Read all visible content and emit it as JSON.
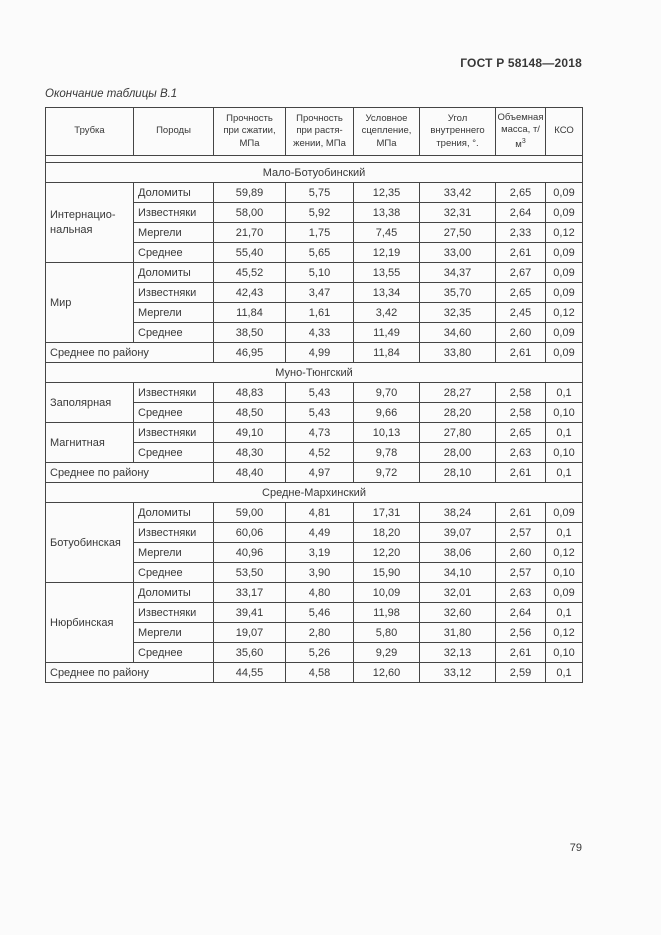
{
  "page": {
    "doc_header": "ГОСТ Р 58148—2018",
    "table_caption": "Окончание таблицы В.1",
    "page_number": "79"
  },
  "table": {
    "headers": {
      "tube": "Трубка",
      "rocks": "Породы",
      "compressive": "Прочность\nпри сжатии,\nМПа",
      "tensile": "Прочность\nпри растя-\nжении, МПа",
      "cohesion": "Условное\nсцепление,\nМПа",
      "friction": "Угол\nвнутреннего\nтрения, °.",
      "mass_base": "Объемная\nмасса, т/м",
      "mass_sup": "3",
      "kso": "КСО"
    },
    "sections": [
      {
        "title": "Мало-Ботуобинский",
        "groups": [
          {
            "tube": "Интернацио-\nнальная",
            "rows": [
              [
                "Доломиты",
                "59,89",
                "5,75",
                "12,35",
                "33,42",
                "2,65",
                "0,09"
              ],
              [
                "Известняки",
                "58,00",
                "5,92",
                "13,38",
                "32,31",
                "2,64",
                "0,09"
              ],
              [
                "Мергели",
                "21,70",
                "1,75",
                "7,45",
                "27,50",
                "2,33",
                "0,12"
              ],
              [
                "Среднее",
                "55,40",
                "5,65",
                "12,19",
                "33,00",
                "2,61",
                "0,09"
              ]
            ]
          },
          {
            "tube": "Мир",
            "rows": [
              [
                "Доломиты",
                "45,52",
                "5,10",
                "13,55",
                "34,37",
                "2,67",
                "0,09"
              ],
              [
                "Известняки",
                "42,43",
                "3,47",
                "13,34",
                "35,70",
                "2,65",
                "0,09"
              ],
              [
                "Мергели",
                "11,84",
                "1,61",
                "3,42",
                "32,35",
                "2,45",
                "0,12"
              ],
              [
                "Среднее",
                "38,50",
                "4,33",
                "11,49",
                "34,60",
                "2,60",
                "0,09"
              ]
            ]
          }
        ],
        "summary": {
          "label": "Среднее по району",
          "values": [
            "46,95",
            "4,99",
            "11,84",
            "33,80",
            "2,61",
            "0,09"
          ]
        }
      },
      {
        "title": "Муно-Тюнгский",
        "groups": [
          {
            "tube": "Заполярная",
            "rows": [
              [
                "Известняки",
                "48,83",
                "5,43",
                "9,70",
                "28,27",
                "2,58",
                "0,1"
              ],
              [
                "Среднее",
                "48,50",
                "5,43",
                "9,66",
                "28,20",
                "2,58",
                "0,10"
              ]
            ]
          },
          {
            "tube": "Магнитная",
            "rows": [
              [
                "Известняки",
                "49,10",
                "4,73",
                "10,13",
                "27,80",
                "2,65",
                "0,1"
              ],
              [
                "Среднее",
                "48,30",
                "4,52",
                "9,78",
                "28,00",
                "2,63",
                "0,10"
              ]
            ]
          }
        ],
        "summary": {
          "label": "Среднее по району",
          "values": [
            "48,40",
            "4,97",
            "9,72",
            "28,10",
            "2,61",
            "0,1"
          ]
        }
      },
      {
        "title": "Средне-Мархинский",
        "groups": [
          {
            "tube": "Ботуобинская",
            "rows": [
              [
                "Доломиты",
                "59,00",
                "4,81",
                "17,31",
                "38,24",
                "2,61",
                "0,09"
              ],
              [
                "Известняки",
                "60,06",
                "4,49",
                "18,20",
                "39,07",
                "2,57",
                "0,1"
              ],
              [
                "Мергели",
                "40,96",
                "3,19",
                "12,20",
                "38,06",
                "2,60",
                "0,12"
              ],
              [
                "Среднее",
                "53,50",
                "3,90",
                "15,90",
                "34,10",
                "2,57",
                "0,10"
              ]
            ]
          },
          {
            "tube": "Нюрбинская",
            "rows": [
              [
                "Доломиты",
                "33,17",
                "4,80",
                "10,09",
                "32,01",
                "2,63",
                "0,09"
              ],
              [
                "Известняки",
                "39,41",
                "5,46",
                "11,98",
                "32,60",
                "2,64",
                "0,1"
              ],
              [
                "Мергели",
                "19,07",
                "2,80",
                "5,80",
                "31,80",
                "2,56",
                "0,12"
              ],
              [
                "Среднее",
                "35,60",
                "5,26",
                "9,29",
                "32,13",
                "2,61",
                "0,10"
              ]
            ]
          }
        ],
        "summary": {
          "label": "Среднее по району",
          "values": [
            "44,55",
            "4,58",
            "12,60",
            "33,12",
            "2,59",
            "0,1"
          ]
        }
      }
    ]
  }
}
